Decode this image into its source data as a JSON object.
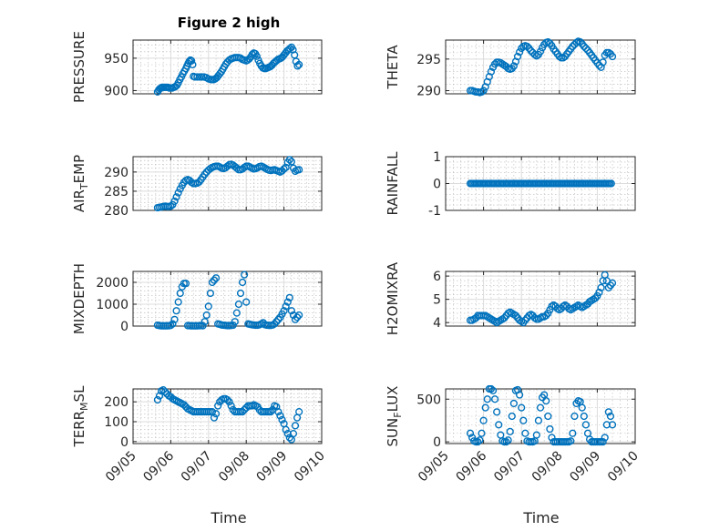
{
  "figure": {
    "title": "Figure 2 high",
    "xlabel": "Time",
    "marker_color": "#0072BD",
    "x_ticks": [
      "09/05",
      "09/06",
      "09/07",
      "09/08",
      "09/09",
      "09/10"
    ]
  },
  "chart_data": [
    {
      "type": "scatter",
      "title": "Figure 2 high",
      "ylabel": "PRESSURE",
      "xlim": [
        0,
        5
      ],
      "ylim": [
        895,
        978
      ],
      "yticks": [
        900,
        950
      ],
      "x": [
        0.65,
        0.68,
        0.71,
        0.74,
        0.77,
        0.8,
        0.84,
        0.88,
        0.92,
        0.96,
        1.0,
        1.04,
        1.08,
        1.12,
        1.16,
        1.2,
        1.24,
        1.28,
        1.32,
        1.36,
        1.4,
        1.43,
        1.46,
        1.49,
        1.52,
        1.55,
        1.58,
        1.6,
        1.64,
        1.7,
        1.76,
        1.82,
        1.88,
        1.94,
        2.0,
        2.06,
        2.1,
        2.14,
        2.18,
        2.22,
        2.26,
        2.3,
        2.34,
        2.38,
        2.42,
        2.46,
        2.5,
        2.55,
        2.6,
        2.65,
        2.7,
        2.75,
        2.8,
        2.85,
        2.9,
        2.95,
        3.0,
        3.04,
        3.08,
        3.12,
        3.16,
        3.2,
        3.24,
        3.28,
        3.32,
        3.36,
        3.4,
        3.44,
        3.48,
        3.52,
        3.56,
        3.6,
        3.64,
        3.68,
        3.72,
        3.76,
        3.8,
        3.84,
        3.88,
        3.92,
        3.96,
        4.0,
        4.04,
        4.08,
        4.12,
        4.16,
        4.2,
        4.24,
        4.28,
        4.32,
        4.36,
        4.4
      ],
      "y": [
        898,
        901,
        903,
        904,
        905,
        905,
        905,
        905,
        905,
        904,
        904,
        904,
        905,
        906,
        908,
        912,
        917,
        921,
        926,
        930,
        934,
        938,
        942,
        945,
        947,
        946,
        940,
        922,
        921,
        921,
        921,
        921,
        921,
        920,
        918,
        917,
        917,
        917,
        918,
        920,
        923,
        926,
        929,
        933,
        937,
        941,
        944,
        947,
        949,
        950,
        951,
        951,
        951,
        950,
        948,
        947,
        946,
        947,
        949,
        952,
        956,
        958,
        957,
        953,
        947,
        942,
        938,
        935,
        934,
        934,
        935,
        936,
        937,
        939,
        942,
        944,
        946,
        948,
        949,
        950,
        952,
        955,
        958,
        961,
        963,
        965,
        967,
        963,
        955,
        945,
        938,
        940
      ]
    },
    {
      "type": "scatter",
      "ylabel": "THETA",
      "xlim": [
        0,
        5
      ],
      "ylim": [
        289.5,
        298
      ],
      "yticks": [
        290,
        295
      ],
      "x": [
        0.65,
        0.7,
        0.75,
        0.8,
        0.85,
        0.9,
        0.95,
        1.0,
        1.05,
        1.1,
        1.15,
        1.2,
        1.25,
        1.3,
        1.35,
        1.4,
        1.45,
        1.5,
        1.55,
        1.6,
        1.65,
        1.7,
        1.75,
        1.8,
        1.85,
        1.9,
        1.95,
        2.0,
        2.05,
        2.1,
        2.15,
        2.2,
        2.25,
        2.3,
        2.35,
        2.4,
        2.45,
        2.5,
        2.55,
        2.6,
        2.65,
        2.7,
        2.75,
        2.8,
        2.85,
        2.9,
        2.95,
        3.0,
        3.05,
        3.1,
        3.15,
        3.2,
        3.25,
        3.3,
        3.35,
        3.4,
        3.45,
        3.5,
        3.55,
        3.6,
        3.65,
        3.7,
        3.75,
        3.8,
        3.85,
        3.9,
        3.95,
        4.0,
        4.05,
        4.1,
        4.15,
        4.2,
        4.25,
        4.3,
        4.35,
        4.4
      ],
      "y": [
        290,
        290,
        289.9,
        289.8,
        289.8,
        289.7,
        289.8,
        290,
        290.6,
        291.4,
        292.2,
        293,
        293.7,
        294.2,
        294.5,
        294.5,
        294.4,
        294.2,
        294,
        293.8,
        293.5,
        293.4,
        293.5,
        293.9,
        294.6,
        295.4,
        296.1,
        296.7,
        297,
        297.1,
        297,
        296.7,
        296.3,
        296,
        295.7,
        295.5,
        295.7,
        296.2,
        296.8,
        297.3,
        297.6,
        297.7,
        297.5,
        297.1,
        296.6,
        296.2,
        295.8,
        295.4,
        295.2,
        295.2,
        295.4,
        295.8,
        296.2,
        296.6,
        297,
        297.3,
        297.6,
        297.8,
        297.7,
        297.4,
        297,
        296.7,
        296.4,
        296,
        295.6,
        295.2,
        294.8,
        294.4,
        294,
        293.7,
        294.5,
        295.6,
        296,
        296,
        295.8,
        295.4
      ]
    },
    {
      "type": "scatter",
      "ylabel": "AIR_TEMP",
      "xlim": [
        0,
        5
      ],
      "ylim": [
        280,
        294
      ],
      "yticks": [
        280,
        285,
        290
      ],
      "x": [
        0.65,
        0.7,
        0.75,
        0.8,
        0.85,
        0.9,
        0.95,
        1.0,
        1.05,
        1.1,
        1.15,
        1.2,
        1.25,
        1.3,
        1.35,
        1.4,
        1.45,
        1.5,
        1.55,
        1.6,
        1.65,
        1.7,
        1.75,
        1.8,
        1.85,
        1.9,
        1.95,
        2.0,
        2.05,
        2.1,
        2.15,
        2.2,
        2.25,
        2.3,
        2.35,
        2.4,
        2.45,
        2.5,
        2.55,
        2.6,
        2.65,
        2.7,
        2.75,
        2.8,
        2.85,
        2.9,
        2.95,
        3.0,
        3.05,
        3.1,
        3.15,
        3.2,
        3.25,
        3.3,
        3.35,
        3.4,
        3.45,
        3.5,
        3.55,
        3.6,
        3.65,
        3.7,
        3.75,
        3.8,
        3.85,
        3.9,
        3.95,
        4.0,
        4.05,
        4.1,
        4.15,
        4.2,
        4.25,
        4.3,
        4.35,
        4.4
      ],
      "y": [
        280.7,
        280.8,
        280.9,
        281,
        281.1,
        281,
        281,
        281.1,
        281.5,
        282.4,
        283.5,
        284.6,
        285.6,
        286.5,
        287.3,
        287.8,
        288,
        287.8,
        287.3,
        287,
        287,
        287.1,
        287.4,
        288,
        288.7,
        289.4,
        290,
        290.5,
        290.9,
        291.2,
        291.4,
        291.5,
        291.5,
        291.3,
        291,
        290.9,
        291.1,
        291.5,
        291.9,
        292,
        291.8,
        291.4,
        291,
        290.6,
        290.6,
        290.8,
        291.2,
        291.5,
        291.5,
        291.3,
        291,
        290.8,
        290.9,
        291.1,
        291.4,
        291.5,
        291.3,
        291,
        290.7,
        290.5,
        290.4,
        290.5,
        290.6,
        290.4,
        290.2,
        290,
        290.3,
        290.8,
        291.2,
        292.5,
        293.2,
        292.7,
        291,
        290.2,
        290.5,
        290.6
      ]
    },
    {
      "type": "scatter",
      "ylabel": "RAINFALL",
      "xlim": [
        0,
        5
      ],
      "ylim": [
        -1,
        1
      ],
      "yticks": [
        -1,
        0,
        1
      ],
      "x_range": [
        0.65,
        4.4
      ],
      "x_step": 0.04,
      "constant_y": 0
    },
    {
      "type": "scatter",
      "ylabel": "MIXDEPTH",
      "xlim": [
        0,
        5
      ],
      "ylim": [
        0,
        2500
      ],
      "yticks": [
        0,
        1000,
        2000
      ],
      "x": [
        0.65,
        0.7,
        0.75,
        0.8,
        0.85,
        0.9,
        0.95,
        1.0,
        1.05,
        1.1,
        1.15,
        1.2,
        1.25,
        1.3,
        1.35,
        1.4,
        1.45,
        1.5,
        1.55,
        1.6,
        1.65,
        1.7,
        1.75,
        1.8,
        1.85,
        1.9,
        1.95,
        2.0,
        2.05,
        2.1,
        2.15,
        2.2,
        2.25,
        2.3,
        2.35,
        2.4,
        2.45,
        2.5,
        2.55,
        2.6,
        2.65,
        2.7,
        2.75,
        2.8,
        2.85,
        2.9,
        2.95,
        3.0,
        3.05,
        3.1,
        3.15,
        3.2,
        3.25,
        3.3,
        3.35,
        3.4,
        3.45,
        3.5,
        3.55,
        3.6,
        3.65,
        3.7,
        3.75,
        3.8,
        3.85,
        3.9,
        3.95,
        4.0,
        4.05,
        4.1,
        4.15,
        4.2,
        4.25,
        4.3,
        4.35,
        4.4
      ],
      "y": [
        40,
        20,
        10,
        10,
        10,
        10,
        15,
        30,
        100,
        300,
        700,
        1100,
        1500,
        1800,
        1950,
        1950,
        20,
        15,
        10,
        10,
        10,
        10,
        15,
        20,
        15,
        200,
        500,
        900,
        1500,
        2000,
        2100,
        2200,
        100,
        80,
        50,
        40,
        30,
        20,
        20,
        30,
        40,
        200,
        600,
        1000,
        1500,
        2000,
        2350,
        1100,
        100,
        80,
        60,
        50,
        40,
        40,
        60,
        100,
        150,
        60,
        40,
        30,
        30,
        50,
        100,
        200,
        300,
        400,
        550,
        700,
        900,
        1100,
        1300,
        700,
        500,
        300,
        400,
        500
      ]
    },
    {
      "type": "scatter",
      "ylabel": "H2OMIXRA",
      "xlim": [
        0,
        5
      ],
      "ylim": [
        3.85,
        6.2
      ],
      "yticks": [
        4,
        5,
        6
      ],
      "x": [
        0.65,
        0.7,
        0.75,
        0.8,
        0.85,
        0.9,
        0.95,
        1.0,
        1.05,
        1.1,
        1.15,
        1.2,
        1.25,
        1.3,
        1.35,
        1.4,
        1.45,
        1.5,
        1.55,
        1.6,
        1.65,
        1.7,
        1.75,
        1.8,
        1.85,
        1.9,
        1.95,
        2.0,
        2.05,
        2.1,
        2.15,
        2.2,
        2.25,
        2.3,
        2.35,
        2.4,
        2.45,
        2.5,
        2.55,
        2.6,
        2.65,
        2.7,
        2.75,
        2.8,
        2.85,
        2.9,
        2.95,
        3.0,
        3.05,
        3.1,
        3.15,
        3.2,
        3.25,
        3.3,
        3.35,
        3.4,
        3.45,
        3.5,
        3.55,
        3.6,
        3.65,
        3.7,
        3.75,
        3.8,
        3.85,
        3.9,
        3.95,
        4.0,
        4.05,
        4.1,
        4.15,
        4.2,
        4.25,
        4.3,
        4.35,
        4.4
      ],
      "y": [
        4.1,
        4.1,
        4.15,
        4.2,
        4.3,
        4.3,
        4.3,
        4.3,
        4.3,
        4.25,
        4.2,
        4.15,
        4.1,
        4.05,
        4.0,
        4.05,
        4.1,
        4.15,
        4.2,
        4.3,
        4.4,
        4.45,
        4.4,
        4.35,
        4.3,
        4.2,
        4.1,
        4.05,
        4.0,
        4.1,
        4.2,
        4.3,
        4.35,
        4.3,
        4.2,
        4.15,
        4.15,
        4.2,
        4.25,
        4.25,
        4.3,
        4.4,
        4.55,
        4.7,
        4.75,
        4.7,
        4.6,
        4.55,
        4.6,
        4.7,
        4.75,
        4.7,
        4.6,
        4.55,
        4.6,
        4.65,
        4.7,
        4.75,
        4.7,
        4.65,
        4.7,
        4.75,
        4.8,
        4.9,
        4.95,
        5.0,
        5.05,
        5.15,
        5.3,
        5.5,
        5.8,
        6.05,
        5.8,
        5.5,
        5.6,
        5.7
      ]
    },
    {
      "type": "scatter",
      "ylabel": "TERR_MSL",
      "xlim": [
        0,
        5
      ],
      "ylim": [
        -10,
        265
      ],
      "yticks": [
        0,
        100,
        200
      ],
      "x": [
        0.65,
        0.7,
        0.75,
        0.8,
        0.85,
        0.9,
        0.95,
        1.0,
        1.05,
        1.1,
        1.15,
        1.2,
        1.25,
        1.3,
        1.35,
        1.4,
        1.45,
        1.5,
        1.55,
        1.6,
        1.65,
        1.7,
        1.75,
        1.8,
        1.85,
        1.9,
        1.95,
        2.0,
        2.05,
        2.1,
        2.15,
        2.2,
        2.25,
        2.3,
        2.35,
        2.4,
        2.45,
        2.5,
        2.55,
        2.6,
        2.65,
        2.7,
        2.75,
        2.8,
        2.85,
        2.9,
        2.95,
        3.0,
        3.05,
        3.1,
        3.15,
        3.2,
        3.25,
        3.3,
        3.35,
        3.4,
        3.45,
        3.5,
        3.55,
        3.6,
        3.65,
        3.7,
        3.75,
        3.8,
        3.85,
        3.9,
        3.95,
        4.0,
        4.05,
        4.1,
        4.15,
        4.2,
        4.25,
        4.3,
        4.35,
        4.4
      ],
      "y": [
        210,
        230,
        255,
        260,
        250,
        240,
        230,
        225,
        215,
        210,
        205,
        200,
        195,
        190,
        185,
        175,
        165,
        160,
        155,
        150,
        150,
        150,
        150,
        150,
        150,
        150,
        150,
        150,
        150,
        150,
        120,
        140,
        180,
        200,
        210,
        215,
        215,
        210,
        200,
        180,
        160,
        150,
        150,
        150,
        150,
        150,
        160,
        170,
        180,
        180,
        180,
        185,
        180,
        175,
        160,
        150,
        150,
        150,
        150,
        150,
        150,
        160,
        180,
        175,
        150,
        130,
        110,
        90,
        60,
        40,
        20,
        10,
        40,
        80,
        120,
        150
      ]
    },
    {
      "type": "scatter",
      "ylabel": "SUN_FLUX",
      "xlim": [
        0,
        5
      ],
      "ylim": [
        -20,
        620
      ],
      "yticks": [
        0,
        500
      ],
      "x": [
        0.65,
        0.7,
        0.75,
        0.8,
        0.85,
        0.9,
        0.95,
        1.0,
        1.05,
        1.1,
        1.15,
        1.2,
        1.25,
        1.3,
        1.35,
        1.4,
        1.45,
        1.5,
        1.55,
        1.6,
        1.65,
        1.7,
        1.75,
        1.8,
        1.85,
        1.9,
        1.95,
        2.0,
        2.05,
        2.1,
        2.15,
        2.2,
        2.25,
        2.3,
        2.35,
        2.4,
        2.45,
        2.5,
        2.55,
        2.6,
        2.65,
        2.7,
        2.75,
        2.8,
        2.85,
        2.9,
        2.95,
        3.0,
        3.05,
        3.1,
        3.15,
        3.2,
        3.25,
        3.3,
        3.35,
        3.4,
        3.45,
        3.5,
        3.55,
        3.6,
        3.65,
        3.7,
        3.75,
        3.8,
        3.85,
        3.9,
        3.95,
        4.0,
        4.05,
        4.1,
        4.15,
        4.2,
        4.25,
        4.3,
        4.35,
        4.4
      ],
      "y": [
        100,
        50,
        10,
        0,
        0,
        20,
        100,
        250,
        400,
        500,
        620,
        620,
        600,
        500,
        350,
        200,
        80,
        10,
        0,
        0,
        20,
        120,
        300,
        450,
        600,
        610,
        550,
        400,
        250,
        100,
        10,
        0,
        0,
        0,
        10,
        80,
        250,
        400,
        520,
        550,
        480,
        300,
        150,
        50,
        0,
        0,
        0,
        0,
        0,
        0,
        0,
        0,
        0,
        10,
        100,
        300,
        450,
        480,
        470,
        400,
        300,
        200,
        100,
        30,
        0,
        0,
        0,
        0,
        0,
        0,
        0,
        50,
        200,
        350,
        300,
        200
      ]
    }
  ]
}
